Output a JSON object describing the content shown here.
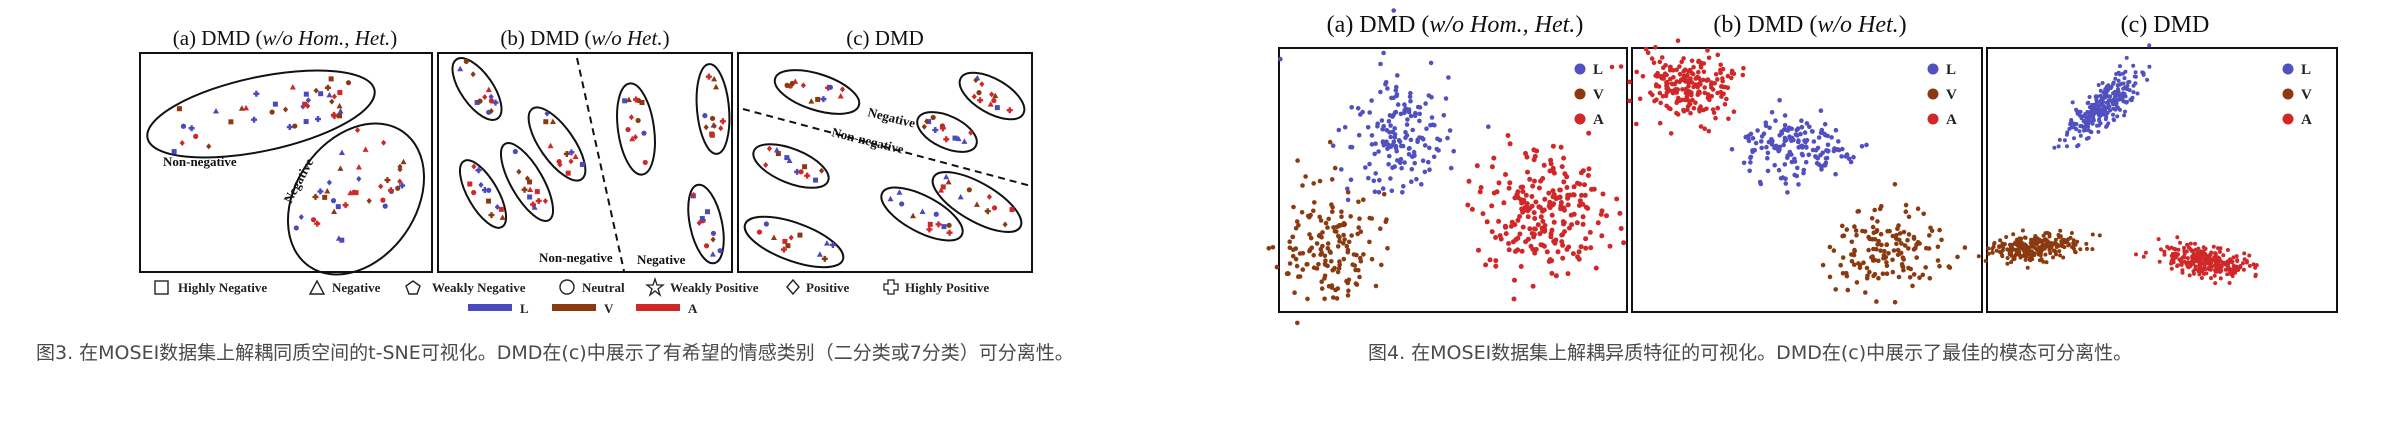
{
  "fig3": {
    "titles": [
      {
        "prefix": "(a) DMD (",
        "italic": "w/o Hom., Het.",
        "suffix": ")"
      },
      {
        "prefix": "(b) DMD (",
        "italic": "w/o Het.",
        "suffix": ")"
      },
      {
        "prefix": "(c) DMD",
        "italic": "",
        "suffix": ""
      }
    ],
    "region_labels": {
      "non_negative": "Non-negative",
      "negative": "Negative"
    },
    "shape_legend": [
      "Highly Negative",
      "Negative",
      "Weakly Negative",
      "Neutral",
      "Weakly Positive",
      "Positive",
      "Highly Positive"
    ],
    "modality_legend": [
      {
        "label": "L",
        "color": "#4a4abf"
      },
      {
        "label": "V",
        "color": "#8b3a10"
      },
      {
        "label": "A",
        "color": "#d02828"
      }
    ],
    "caption": "图3. 在MOSEI数据集上解耦同质空间的t-SNE可视化。DMD在(c)中展示了有希望的情感类别（二分类或7分类）可分离性。"
  },
  "fig4": {
    "titles": [
      {
        "prefix": "(a) DMD (",
        "italic": "w/o Hom., Het.",
        "suffix": ")"
      },
      {
        "prefix": "(b) DMD (",
        "italic": "w/o Het.",
        "suffix": ")"
      },
      {
        "prefix": "(c) DMD",
        "italic": "",
        "suffix": ""
      }
    ],
    "legend": [
      {
        "label": "L",
        "color": "#5050c0"
      },
      {
        "label": "V",
        "color": "#8b3a10"
      },
      {
        "label": "A",
        "color": "#d02828"
      }
    ],
    "caption": "图4. 在MOSEI数据集上解耦异质特征的可视化。DMD在(c)中展示了最佳的模态可分离性。"
  }
}
